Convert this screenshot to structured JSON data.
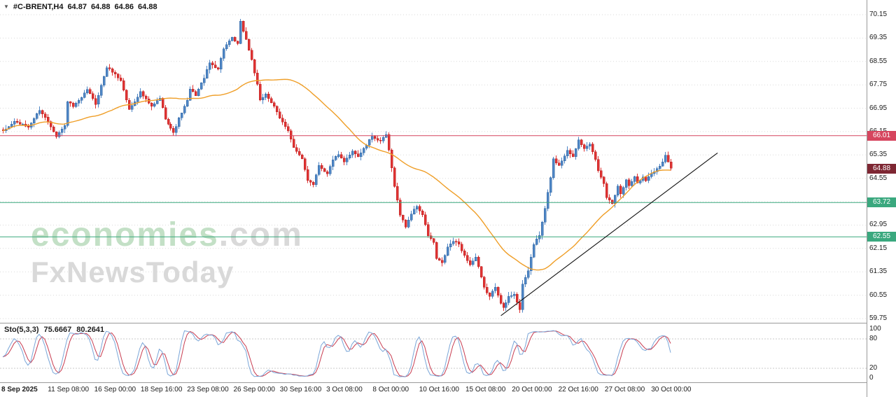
{
  "header": {
    "symbol_timeframe": "#C-BRENT,H4",
    "open": "64.87",
    "high": "64.88",
    "low": "64.86",
    "close": "64.88"
  },
  "watermark": {
    "brand": "economies",
    "domain": ".com",
    "tagline": "FxNewsToday"
  },
  "indicator": {
    "name": "Sto(5,3,3)",
    "value_main": "75.6667",
    "value_signal": "80.2641"
  },
  "colors": {
    "bull": "#4e86c6",
    "bull_stroke": "#35679f",
    "bear": "#e03232",
    "bear_stroke": "#b82626",
    "ma": "#ef9e27",
    "grid": "#dadada",
    "sub_grid": "#c9c9c9",
    "axis_text": "#1b1b1b",
    "separator": "#9a9a9a"
  },
  "chart_data": {
    "type": "candlestick",
    "title": "#C-BRENT,H4",
    "ohlc_readout": {
      "open": 64.87,
      "high": 64.88,
      "low": 64.86,
      "close": 64.88
    },
    "ylim": [
      59.75,
      70.15
    ],
    "y_ticks": [
      70.15,
      69.35,
      68.55,
      67.75,
      66.95,
      66.15,
      65.35,
      64.55,
      63.75,
      62.95,
      62.15,
      61.35,
      60.55,
      59.75
    ],
    "x_tick_labels": [
      "8 Sep 2025",
      "11 Sep 08:00",
      "16 Sep 00:00",
      "18 Sep 16:00",
      "23 Sep 08:00",
      "26 Sep 00:00",
      "30 Sep 16:00",
      "3 Oct 08:00",
      "8 Oct 00:00",
      "10 Oct 16:00",
      "15 Oct 08:00",
      "20 Oct 00:00",
      "22 Oct 16:00",
      "27 Oct 08:00",
      "30 Oct 00:00"
    ],
    "candle_count": 240,
    "price_path_anchors": [
      [
        0,
        66.15
      ],
      [
        4,
        66.5
      ],
      [
        9,
        66.3
      ],
      [
        13,
        66.9
      ],
      [
        16,
        66.5
      ],
      [
        19,
        66.0
      ],
      [
        22,
        66.35
      ],
      [
        23,
        67.2
      ],
      [
        25,
        67.0
      ],
      [
        28,
        67.3
      ],
      [
        30,
        67.6
      ],
      [
        33,
        67.1
      ],
      [
        37,
        68.35
      ],
      [
        39,
        68.2
      ],
      [
        42,
        67.9
      ],
      [
        45,
        66.9
      ],
      [
        49,
        67.5
      ],
      [
        53,
        67.0
      ],
      [
        56,
        67.3
      ],
      [
        58,
        66.6
      ],
      [
        61,
        66.1
      ],
      [
        63,
        66.6
      ],
      [
        66,
        67.2
      ],
      [
        67,
        67.6
      ],
      [
        69,
        67.4
      ],
      [
        72,
        68.0
      ],
      [
        74,
        68.5
      ],
      [
        77,
        68.3
      ],
      [
        79,
        69.0
      ],
      [
        82,
        69.35
      ],
      [
        84,
        69.15
      ],
      [
        85,
        69.9
      ],
      [
        87,
        69.3
      ],
      [
        89,
        68.6
      ],
      [
        91,
        67.75
      ],
      [
        92,
        67.2
      ],
      [
        94,
        67.45
      ],
      [
        97,
        67.0
      ],
      [
        99,
        66.6
      ],
      [
        102,
        66.2
      ],
      [
        104,
        65.6
      ],
      [
        107,
        65.2
      ],
      [
        109,
        64.5
      ],
      [
        111,
        64.35
      ],
      [
        113,
        65.0
      ],
      [
        116,
        64.7
      ],
      [
        118,
        65.2
      ],
      [
        120,
        65.35
      ],
      [
        122,
        65.1
      ],
      [
        125,
        65.5
      ],
      [
        127,
        65.3
      ],
      [
        130,
        65.7
      ],
      [
        132,
        66.0
      ],
      [
        135,
        65.8
      ],
      [
        137,
        66.05
      ],
      [
        138,
        65.5
      ],
      [
        140,
        64.3
      ],
      [
        142,
        63.3
      ],
      [
        144,
        62.9
      ],
      [
        146,
        63.35
      ],
      [
        148,
        63.6
      ],
      [
        150,
        63.3
      ],
      [
        152,
        62.6
      ],
      [
        154,
        62.35
      ],
      [
        155,
        61.8
      ],
      [
        157,
        61.65
      ],
      [
        159,
        62.2
      ],
      [
        161,
        62.4
      ],
      [
        163,
        62.3
      ],
      [
        165,
        61.9
      ],
      [
        167,
        61.6
      ],
      [
        169,
        61.85
      ],
      [
        170,
        61.5
      ],
      [
        172,
        60.8
      ],
      [
        174,
        60.5
      ],
      [
        176,
        60.85
      ],
      [
        178,
        60.3
      ],
      [
        179,
        60.1
      ],
      [
        181,
        60.5
      ],
      [
        183,
        60.6
      ],
      [
        185,
        60.05
      ],
      [
        186,
        60.9
      ],
      [
        188,
        61.4
      ],
      [
        190,
        62.3
      ],
      [
        192,
        62.6
      ],
      [
        194,
        63.5
      ],
      [
        196,
        64.6
      ],
      [
        197,
        65.2
      ],
      [
        199,
        65.0
      ],
      [
        202,
        65.5
      ],
      [
        204,
        65.3
      ],
      [
        206,
        65.9
      ],
      [
        208,
        65.55
      ],
      [
        210,
        65.7
      ],
      [
        212,
        65.2
      ],
      [
        213,
        64.8
      ],
      [
        215,
        64.4
      ],
      [
        216,
        63.9
      ],
      [
        218,
        63.7
      ],
      [
        220,
        64.3
      ],
      [
        221,
        64.0
      ],
      [
        223,
        64.5
      ],
      [
        224,
        64.3
      ],
      [
        226,
        64.6
      ],
      [
        227,
        64.4
      ],
      [
        229,
        64.6
      ],
      [
        230,
        64.5
      ],
      [
        232,
        64.7
      ],
      [
        234,
        64.9
      ],
      [
        236,
        65.1
      ],
      [
        237,
        65.35
      ],
      [
        239,
        64.88
      ]
    ],
    "overlays": {
      "moving_average": {
        "type": "sma",
        "period": 40,
        "color": "#ef9e27"
      },
      "horizontal_lines": [
        {
          "name": "resistance-line",
          "price": 66.01,
          "color": "#d6455e"
        },
        {
          "name": "support-line-upper",
          "price": 63.72,
          "color": "#3aa87e"
        },
        {
          "name": "support-line-lower",
          "price": 62.55,
          "color": "#3aa87e"
        }
      ],
      "trendline": {
        "x1_frac": 0.578,
        "price1": 59.85,
        "x2_frac": 0.828,
        "price2": 65.42,
        "color": "#111111"
      },
      "current_price": {
        "value": 64.88,
        "label_bg": "#7e2733"
      }
    },
    "sub_chart": {
      "type": "stochastic",
      "params": [
        5,
        3,
        3
      ],
      "readout": [
        75.6667,
        80.2641
      ],
      "levels": [
        20,
        80
      ],
      "y_ticks": [
        100,
        80,
        20,
        0
      ],
      "colors": {
        "main": "#7aa6d8",
        "signal": "#c83c50"
      }
    }
  }
}
